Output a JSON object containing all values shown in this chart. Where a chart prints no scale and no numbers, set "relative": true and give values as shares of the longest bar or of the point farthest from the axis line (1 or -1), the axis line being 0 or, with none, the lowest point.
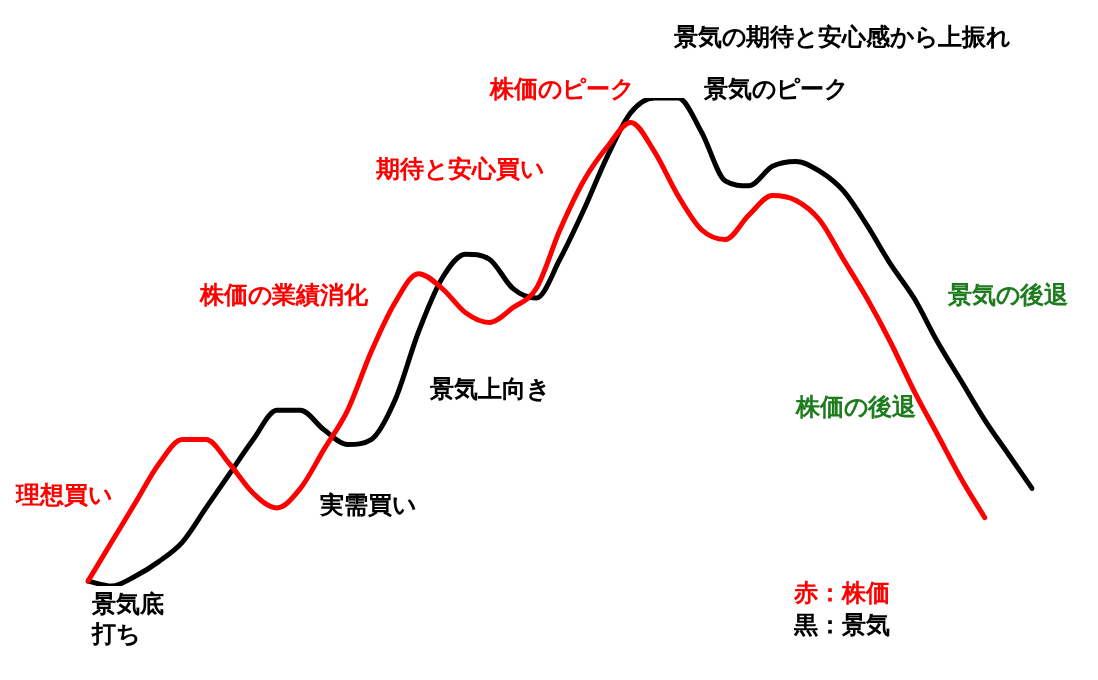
{
  "chart_data": {
    "type": "line",
    "relative": true,
    "marker": "none",
    "legend": false,
    "categories": [
      null,
      null,
      null,
      null,
      null,
      null,
      null,
      null,
      null,
      null,
      null,
      null,
      null,
      null,
      null,
      null,
      null,
      null,
      null,
      null,
      null,
      null,
      null,
      null,
      null,
      null,
      null,
      null,
      null,
      null,
      null,
      null,
      null,
      null,
      null,
      null,
      null,
      null,
      null,
      null,
      null
    ],
    "series": [
      {
        "color": "#ff0000",
        "values": [
          0.01,
          0.09,
          0.17,
          0.25,
          0.3,
          0.3,
          0.25,
          0.19,
          0.16,
          0.2,
          0.28,
          0.36,
          0.48,
          0.58,
          0.64,
          0.61,
          0.56,
          0.54,
          0.57,
          0.61,
          0.73,
          0.83,
          0.9,
          0.95,
          0.89,
          0.8,
          0.73,
          0.71,
          0.76,
          0.8,
          0.79,
          0.75,
          0.67,
          0.59,
          0.5,
          0.4,
          0.31,
          0.22,
          0.14,
          null,
          null
        ]
      },
      {
        "color": "#000000",
        "values": [
          0.01,
          0,
          0.02,
          0.05,
          0.09,
          0.16,
          0.23,
          0.3,
          0.36,
          0.36,
          0.32,
          0.29,
          0.3,
          0.38,
          0.52,
          0.63,
          0.68,
          0.67,
          0.61,
          0.59,
          0.67,
          0.77,
          0.88,
          0.97,
          1,
          1,
          0.93,
          0.83,
          0.82,
          0.86,
          0.87,
          0.85,
          0.81,
          0.74,
          0.66,
          0.59,
          0.5,
          0.42,
          0.34,
          0.27,
          0.2
        ]
      }
    ],
    "annotations": [
      "理想買い",
      "景気底打ち",
      "実需買い",
      "株価の業績消化",
      "景気上向き",
      "期待と安心買い",
      "株価のピーク",
      "景気のピーク",
      "景気の期待と安心感から上振れ",
      "景気の後退",
      "株価の後退",
      "赤：株価",
      "黒：景気"
    ]
  }
}
